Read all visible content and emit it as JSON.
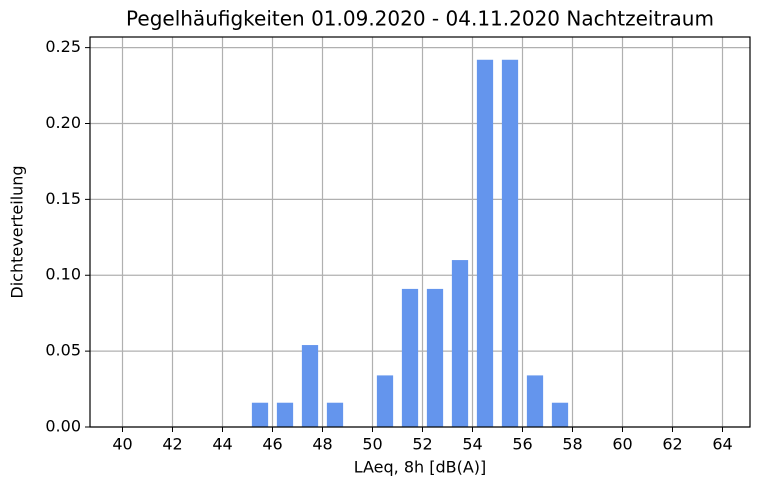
{
  "chart_data": {
    "type": "bar",
    "title": "Pegelhäufigkeiten 01.09.2020 - 04.11.2020 Nachtzeitraum",
    "xlabel": "LAeq, 8h [dB(A)]",
    "ylabel": "Dichteverteilung",
    "x": [
      45.5,
      46.5,
      47.5,
      48.5,
      49.5,
      50.5,
      51.5,
      52.5,
      53.5,
      54.5,
      55.5,
      56.5,
      57.5
    ],
    "values": [
      0.016,
      0.016,
      0.054,
      0.016,
      0,
      0.034,
      0.091,
      0.091,
      0.11,
      0.242,
      0.242,
      0.034,
      0.016
    ],
    "color": "#6495ed",
    "xlim": [
      38.7,
      65.1
    ],
    "xticks": [
      40,
      42,
      44,
      46,
      48,
      50,
      52,
      54,
      56,
      58,
      60,
      62,
      64
    ],
    "ylim": [
      0,
      0.257
    ],
    "yticks": [
      {
        "value": 0,
        "label": "0.00"
      },
      {
        "value": 0.05,
        "label": "0.05"
      },
      {
        "value": 0.1,
        "label": "0.10"
      },
      {
        "value": 0.15,
        "label": "0.15"
      },
      {
        "value": 0.2,
        "label": "0.20"
      },
      {
        "value": 0.25,
        "label": "0.25"
      }
    ],
    "grid": true
  }
}
